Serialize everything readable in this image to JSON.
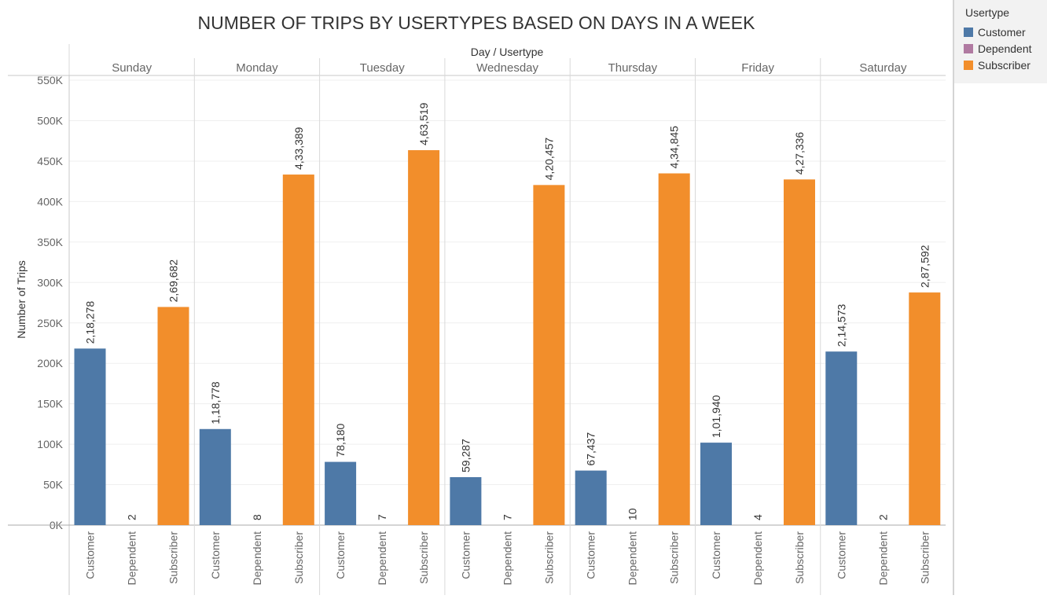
{
  "chart_data": {
    "type": "bar",
    "title": "NUMBER OF TRIPS BY USERTYPES BASED ON DAYS IN A WEEK",
    "column_header": "Day / Usertype",
    "ylabel": "Number of Trips",
    "ylim": [
      0,
      550000
    ],
    "y_ticks": [
      {
        "value": 0,
        "label": "0K"
      },
      {
        "value": 50000,
        "label": "50K"
      },
      {
        "value": 100000,
        "label": "100K"
      },
      {
        "value": 150000,
        "label": "150K"
      },
      {
        "value": 200000,
        "label": "200K"
      },
      {
        "value": 250000,
        "label": "250K"
      },
      {
        "value": 300000,
        "label": "300K"
      },
      {
        "value": 350000,
        "label": "350K"
      },
      {
        "value": 400000,
        "label": "400K"
      },
      {
        "value": 450000,
        "label": "450K"
      },
      {
        "value": 500000,
        "label": "500K"
      },
      {
        "value": 550000,
        "label": "550K"
      }
    ],
    "grid": true,
    "legend_position": "right",
    "categories": [
      "Customer",
      "Dependent",
      "Subscriber"
    ],
    "colors": {
      "Customer": "#4e79a7",
      "Dependent": "#b07aa1",
      "Subscriber": "#f28e2b"
    },
    "days": [
      {
        "name": "Sunday",
        "values": [
          218278,
          2,
          269682
        ],
        "labels": [
          "2,18,278",
          "2",
          "2,69,682"
        ]
      },
      {
        "name": "Monday",
        "values": [
          118778,
          8,
          433389
        ],
        "labels": [
          "1,18,778",
          "8",
          "4,33,389"
        ]
      },
      {
        "name": "Tuesday",
        "values": [
          78180,
          7,
          463519
        ],
        "labels": [
          "78,180",
          "7",
          "4,63,519"
        ]
      },
      {
        "name": "Wednesday",
        "values": [
          59287,
          7,
          420457
        ],
        "labels": [
          "59,287",
          "7",
          "4,20,457"
        ]
      },
      {
        "name": "Thursday",
        "values": [
          67437,
          10,
          434845
        ],
        "labels": [
          "67,437",
          "10",
          "4,34,845"
        ]
      },
      {
        "name": "Friday",
        "values": [
          101940,
          4,
          427336
        ],
        "labels": [
          "1,01,940",
          "4",
          "4,27,336"
        ]
      },
      {
        "name": "Saturday",
        "values": [
          214573,
          2,
          287592
        ],
        "labels": [
          "2,14,573",
          "2",
          "2,87,592"
        ]
      }
    ]
  },
  "legend": {
    "title": "Usertype",
    "items": [
      {
        "label": "Customer",
        "color": "#4e79a7"
      },
      {
        "label": "Dependent",
        "color": "#b07aa1"
      },
      {
        "label": "Subscriber",
        "color": "#f28e2b"
      }
    ]
  }
}
